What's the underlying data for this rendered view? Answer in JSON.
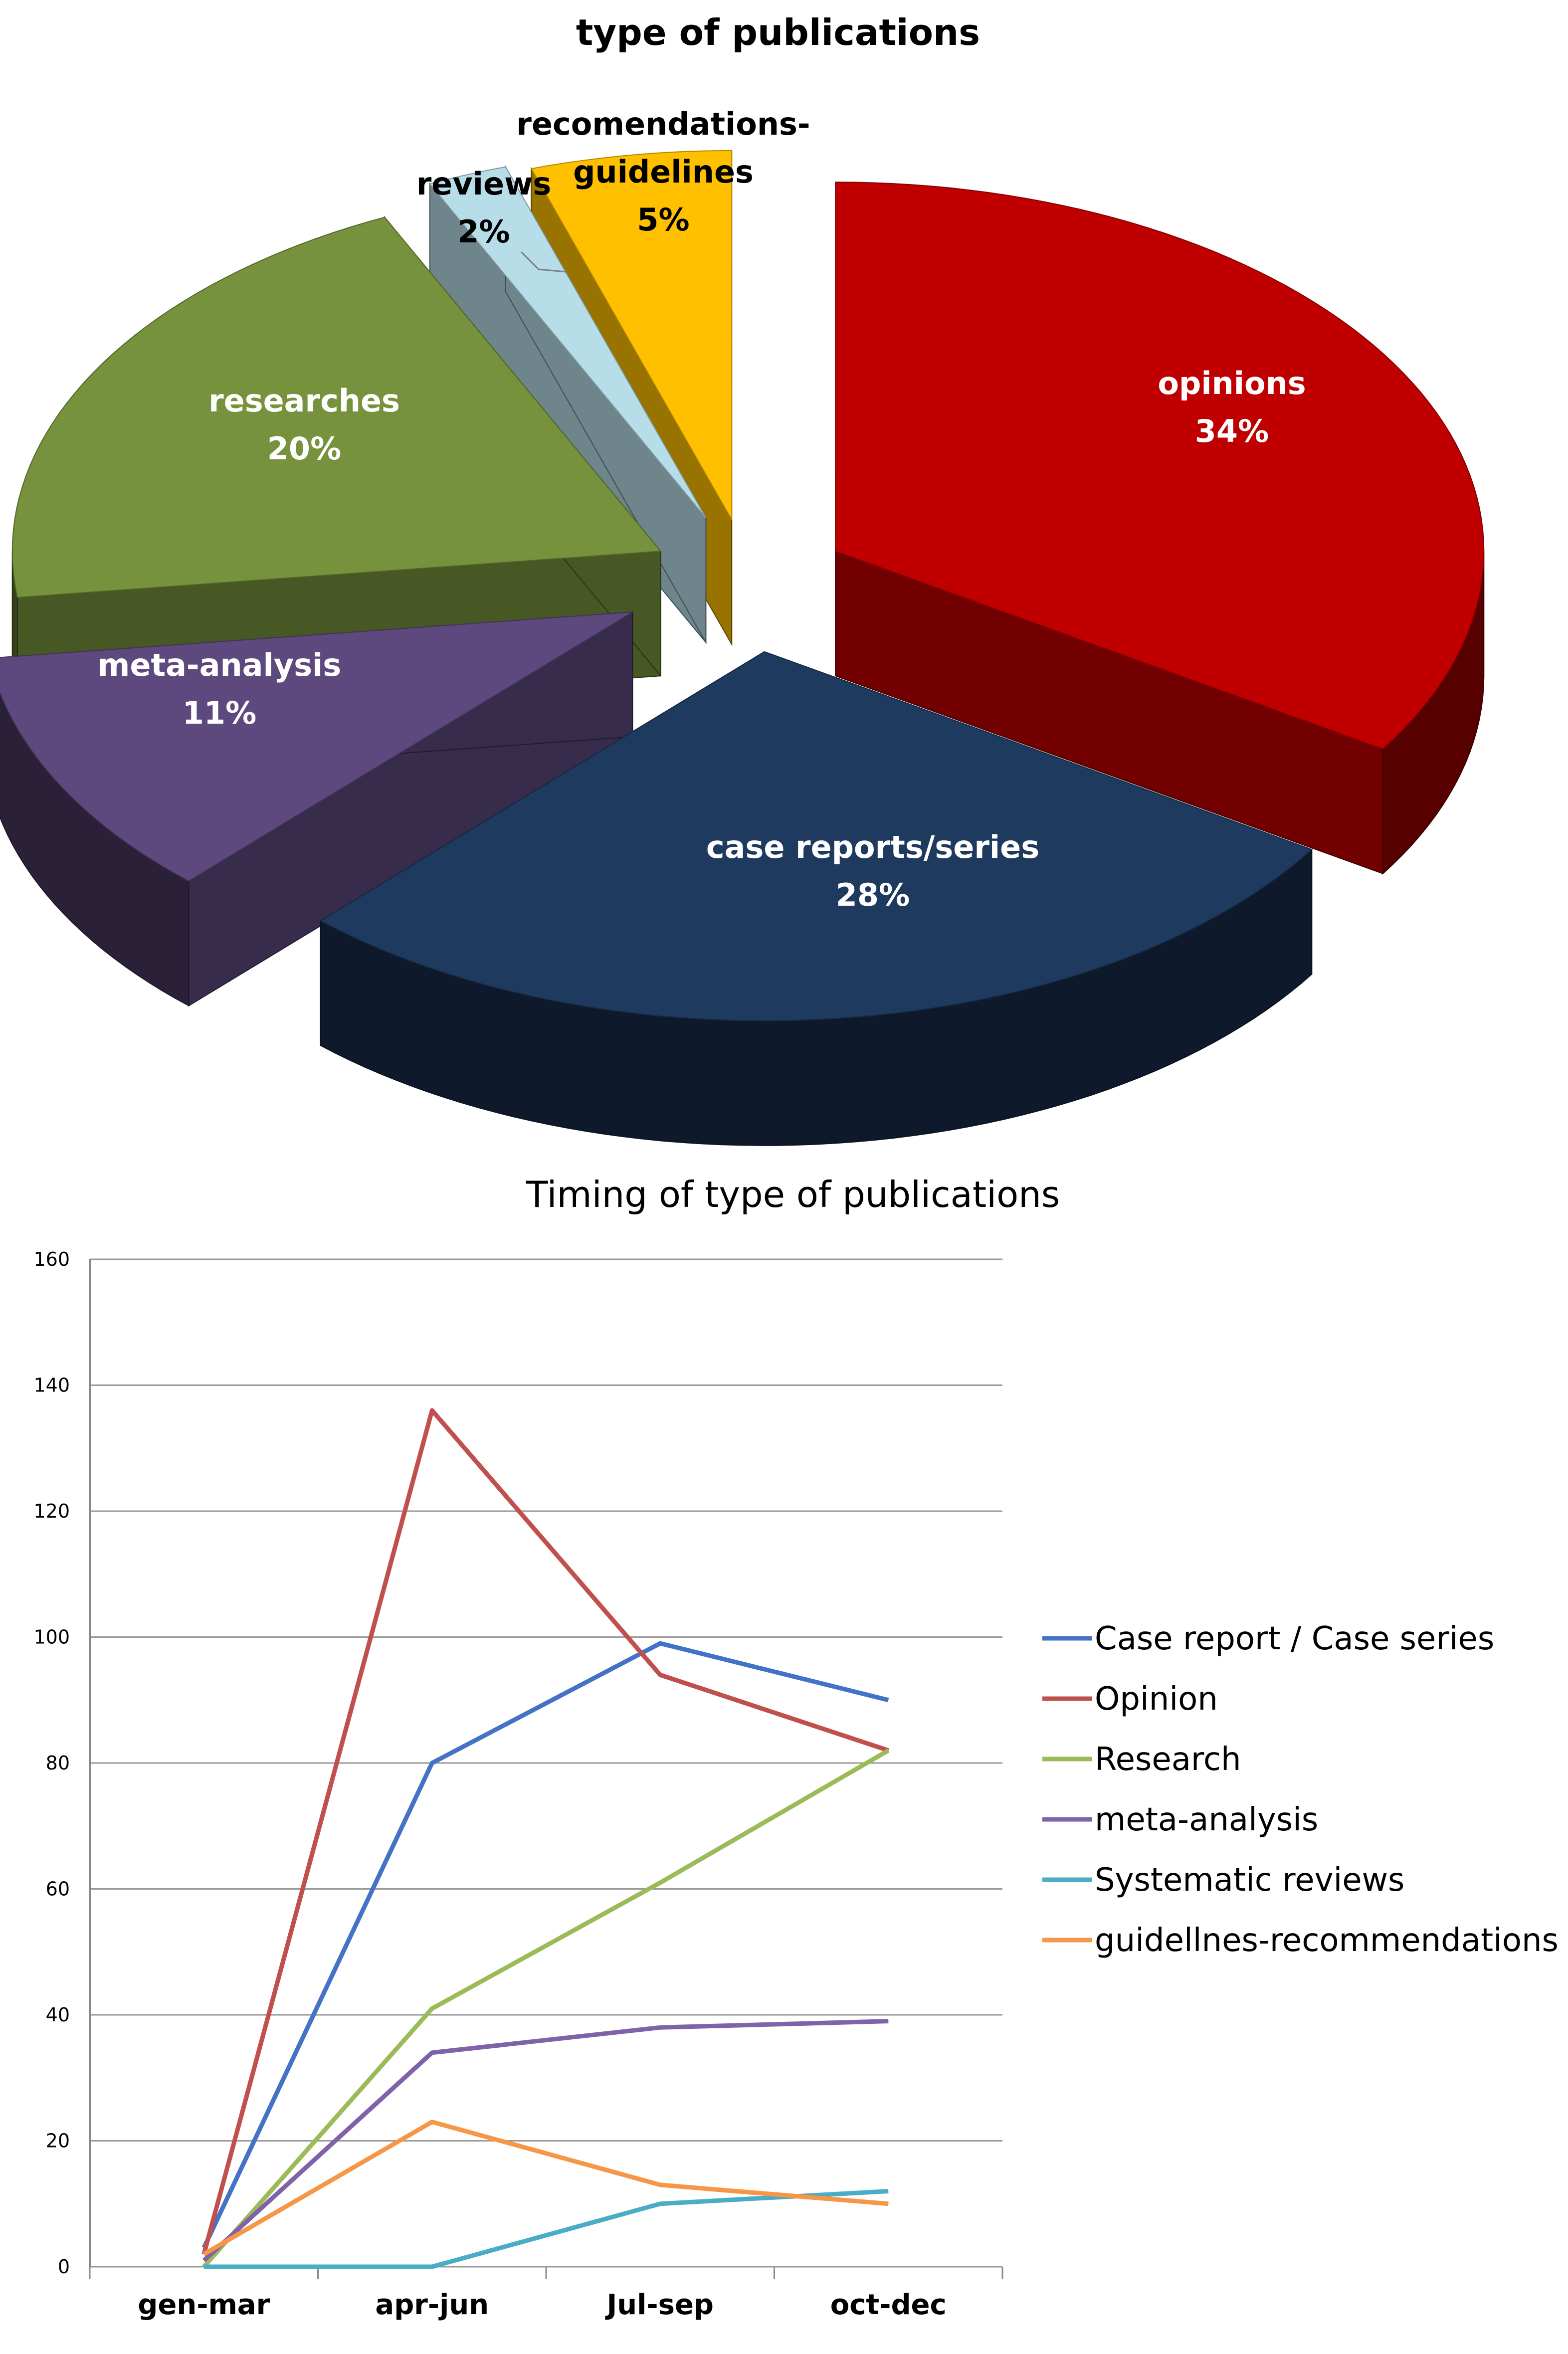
{
  "chart_data": [
    {
      "type": "pie",
      "title": "type of publications",
      "slices": [
        {
          "label": "opinions",
          "percent_label": "34%",
          "value": 34,
          "color": "#C00000"
        },
        {
          "label": "case reports/series",
          "percent_label": "28%",
          "value": 28,
          "color": "#1F3A5F"
        },
        {
          "label": "meta-analysis",
          "percent_label": "11%",
          "value": 11,
          "color": "#5E497F"
        },
        {
          "label": "researches",
          "percent_label": "20%",
          "value": 20,
          "color": "#76923C"
        },
        {
          "label": "reviews",
          "percent_label": "2%",
          "value": 2,
          "color": "#B7DDE8"
        },
        {
          "label": "recomendations-guidelines",
          "label_lines": [
            "recomendations-",
            "guidelines"
          ],
          "percent_label": "5%",
          "value": 5,
          "color": "#FFC000"
        }
      ]
    },
    {
      "type": "line",
      "title": "Timing of type of publications",
      "categories": [
        "gen-mar",
        "apr-jun",
        "Jul-sep",
        "oct-dec"
      ],
      "ylim": [
        0,
        160
      ],
      "yticks": [
        0,
        20,
        40,
        60,
        80,
        100,
        120,
        140,
        160
      ],
      "grid": true,
      "legend_position": "right",
      "series": [
        {
          "name": "Case report  / Case series",
          "color": "#4472C4",
          "values": [
            3,
            80,
            99,
            90
          ]
        },
        {
          "name": "Opinion",
          "color": "#C0504D",
          "values": [
            2,
            136,
            94,
            82
          ]
        },
        {
          "name": "Research",
          "color": "#9BBB59",
          "values": [
            0,
            41,
            61,
            82
          ]
        },
        {
          "name": " meta-analysis",
          "color": "#7F62A8",
          "values": [
            1,
            34,
            38,
            39
          ]
        },
        {
          "name": "Systematic reviews",
          "color": "#4BACC6",
          "values": [
            0,
            0,
            10,
            12
          ]
        },
        {
          "name": "guidellnes-recommendations",
          "color": "#F79646",
          "values": [
            2,
            23,
            13,
            10
          ]
        }
      ]
    }
  ]
}
